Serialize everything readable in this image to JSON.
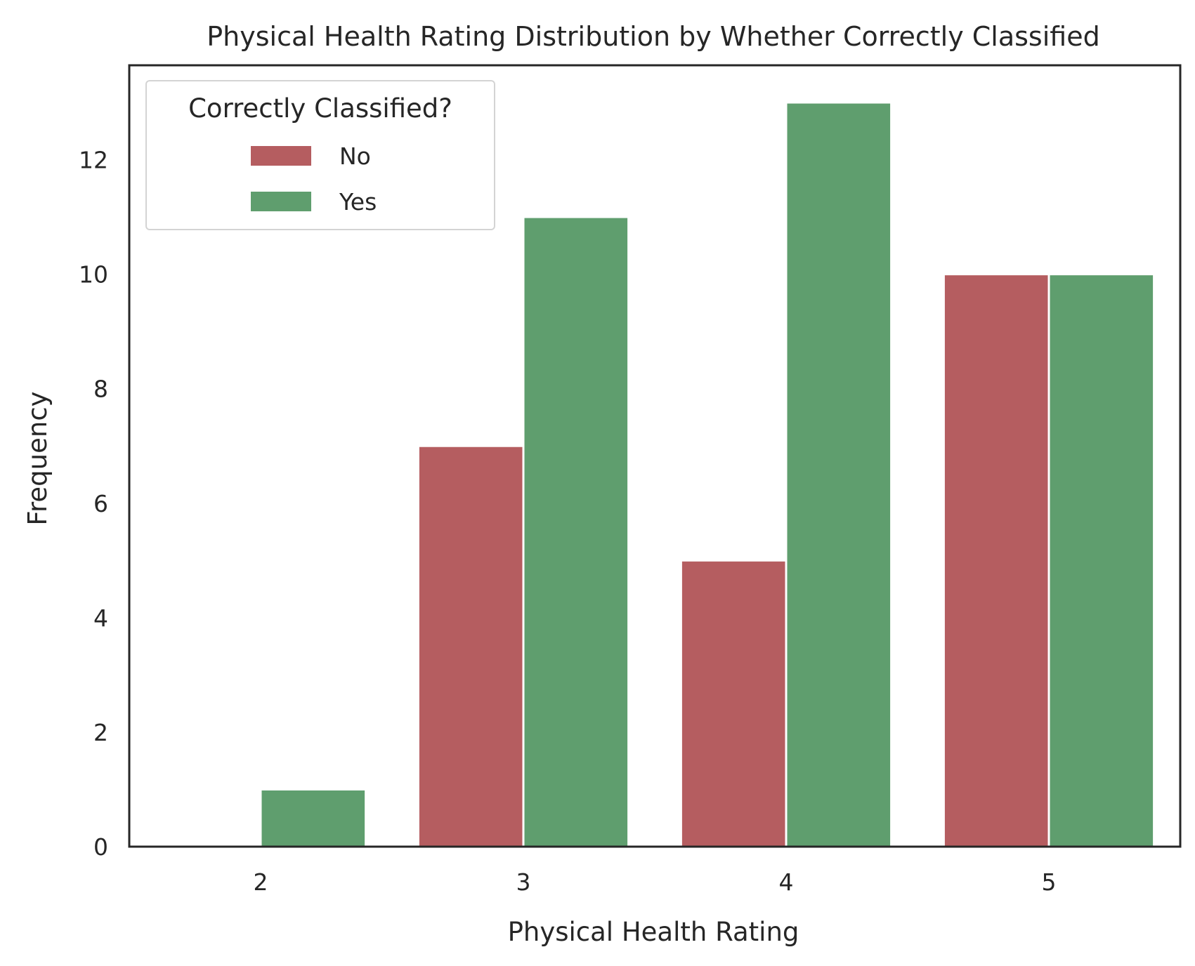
{
  "chart_data": {
    "type": "bar",
    "title": "Physical Health Rating Distribution by Whether Correctly Classified",
    "xlabel": "Physical Health Rating",
    "ylabel": "Frequency",
    "categories": [
      "2",
      "3",
      "4",
      "5"
    ],
    "series": [
      {
        "name": "No",
        "color": "#b55d60",
        "values": [
          0,
          7,
          5,
          10
        ]
      },
      {
        "name": "Yes",
        "color": "#5f9e6e",
        "values": [
          1,
          11,
          13,
          10
        ]
      }
    ],
    "yticks": [
      "0",
      "2",
      "4",
      "6",
      "8",
      "10",
      "12"
    ],
    "ylim": [
      0,
      13.65
    ],
    "grid": false,
    "legend": {
      "title": "Correctly Classified?",
      "placement": "top-left"
    }
  }
}
